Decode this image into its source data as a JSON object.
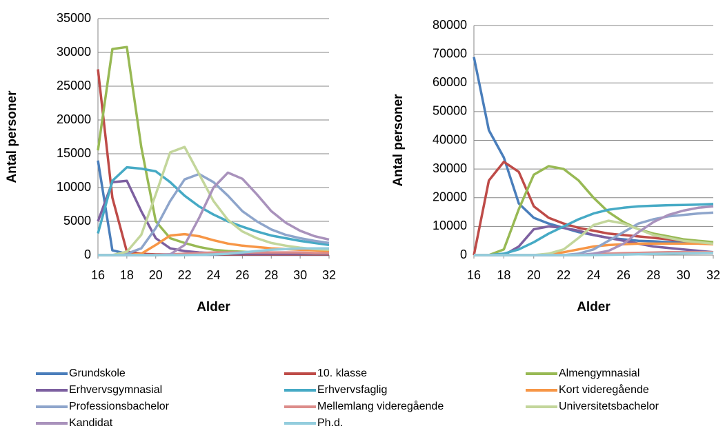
{
  "chart_data": [
    {
      "type": "line",
      "x": [
        16,
        17,
        18,
        19,
        20,
        21,
        22,
        23,
        24,
        25,
        26,
        27,
        28,
        29,
        30,
        31,
        32
      ],
      "xlabel": "Alder",
      "ylabel": "Antal personer",
      "xlim": [
        16,
        32
      ],
      "xticks": [
        16,
        18,
        20,
        22,
        24,
        26,
        28,
        30,
        32
      ],
      "ylim": [
        0,
        35000
      ],
      "yticks": [
        0,
        5000,
        10000,
        15000,
        20000,
        25000,
        30000,
        35000
      ],
      "grid": true,
      "series": [
        {
          "name": "Grundskole",
          "color": "#4a7ebb",
          "values": [
            14000,
            700,
            200,
            100,
            50,
            50,
            50,
            50,
            50,
            50,
            50,
            50,
            50,
            50,
            50,
            50,
            50
          ]
        },
        {
          "name": "10. klasse",
          "color": "#be4b48",
          "values": [
            27500,
            8500,
            500,
            200,
            100,
            100,
            100,
            100,
            100,
            100,
            100,
            100,
            100,
            100,
            100,
            100,
            100
          ]
        },
        {
          "name": "Almengymnasial",
          "color": "#98b954",
          "values": [
            15500,
            30500,
            30800,
            16000,
            5000,
            2500,
            1800,
            1200,
            800,
            600,
            500,
            400,
            300,
            300,
            200,
            200,
            200
          ]
        },
        {
          "name": "Erhvervsgymnasial",
          "color": "#7d60a0",
          "values": [
            5000,
            10800,
            11000,
            6500,
            2500,
            1000,
            600,
            400,
            300,
            200,
            200,
            200,
            200,
            200,
            200,
            200,
            200
          ]
        },
        {
          "name": "Erhvervsfaglig",
          "color": "#46aac5",
          "values": [
            3200,
            11000,
            13000,
            12800,
            12400,
            10800,
            8800,
            7200,
            6000,
            5000,
            4200,
            3500,
            2900,
            2500,
            2100,
            1800,
            1500
          ]
        },
        {
          "name": "Kort videregående",
          "color": "#f79646",
          "values": [
            0,
            0,
            0,
            200,
            1500,
            2900,
            3100,
            2800,
            2200,
            1700,
            1400,
            1200,
            1000,
            900,
            800,
            700,
            600
          ]
        },
        {
          "name": "Professionsbachelor",
          "color": "#8ea5cb",
          "values": [
            0,
            0,
            200,
            1000,
            4000,
            8000,
            11200,
            12000,
            10800,
            8800,
            6500,
            5000,
            3800,
            3000,
            2500,
            2100,
            1800
          ]
        },
        {
          "name": "Mellemlang videregående",
          "color": "#dc8c8a",
          "values": [
            0,
            0,
            0,
            0,
            0,
            100,
            200,
            300,
            400,
            400,
            400,
            400,
            400,
            400,
            400,
            300,
            300
          ]
        },
        {
          "name": "Universitetsbachelor",
          "color": "#c3d69b",
          "values": [
            0,
            0,
            500,
            3000,
            9000,
            15200,
            16000,
            12000,
            8000,
            5200,
            3500,
            2500,
            1800,
            1400,
            1100,
            900,
            800
          ]
        },
        {
          "name": "Kandidat",
          "color": "#a992bc",
          "values": [
            0,
            0,
            0,
            0,
            0,
            100,
            1500,
            5500,
            10000,
            12200,
            11300,
            9000,
            6500,
            4800,
            3600,
            2800,
            2300
          ]
        },
        {
          "name": "Ph.d.",
          "color": "#93cddd",
          "values": [
            0,
            0,
            0,
            0,
            0,
            0,
            0,
            50,
            100,
            200,
            400,
            600,
            800,
            900,
            1000,
            1000,
            1000
          ]
        }
      ]
    },
    {
      "type": "line",
      "x": [
        16,
        17,
        18,
        19,
        20,
        21,
        22,
        23,
        24,
        25,
        26,
        27,
        28,
        29,
        30,
        31,
        32
      ],
      "xlabel": "Alder",
      "ylabel": "Antal personer",
      "xlim": [
        16,
        32
      ],
      "xticks": [
        16,
        18,
        20,
        22,
        24,
        26,
        28,
        30,
        32
      ],
      "ylim": [
        0,
        80000
      ],
      "yticks": [
        0,
        10000,
        20000,
        30000,
        40000,
        50000,
        60000,
        70000,
        80000
      ],
      "grid": true,
      "series": [
        {
          "name": "Grundskole",
          "color": "#4a7ebb",
          "values": [
            69000,
            43500,
            34000,
            18000,
            13000,
            11000,
            9500,
            8000,
            7000,
            6000,
            5500,
            5000,
            4800,
            4500,
            4500,
            4500,
            4500
          ]
        },
        {
          "name": "10. klasse",
          "color": "#be4b48",
          "values": [
            0,
            26000,
            32500,
            29000,
            17000,
            13000,
            11000,
            9500,
            8500,
            7500,
            7000,
            6500,
            6000,
            5500,
            5000,
            4500,
            4000
          ]
        },
        {
          "name": "Almengymnasial",
          "color": "#98b954",
          "values": [
            0,
            0,
            2000,
            16000,
            28000,
            31000,
            30000,
            26000,
            20000,
            15000,
            11500,
            9000,
            7500,
            6500,
            5500,
            5000,
            4500
          ]
        },
        {
          "name": "Erhvervsgymnasial",
          "color": "#7d60a0",
          "values": [
            0,
            0,
            0,
            3000,
            9000,
            10000,
            9500,
            8500,
            7000,
            6000,
            5000,
            4000,
            3000,
            2500,
            2000,
            1500,
            1000
          ]
        },
        {
          "name": "Erhvervsfaglig",
          "color": "#46aac5",
          "values": [
            0,
            0,
            500,
            2000,
            4500,
            7500,
            10000,
            12500,
            14500,
            15800,
            16500,
            17000,
            17200,
            17400,
            17500,
            17600,
            17800
          ]
        },
        {
          "name": "Kort videregående",
          "color": "#f79646",
          "values": [
            0,
            0,
            0,
            0,
            0,
            200,
            1000,
            2000,
            3000,
            3500,
            3800,
            4000,
            4000,
            4000,
            4000,
            4000,
            3800
          ]
        },
        {
          "name": "Professionsbachelor",
          "color": "#8ea5cb",
          "values": [
            0,
            0,
            0,
            0,
            0,
            0,
            0,
            500,
            2000,
            5000,
            8000,
            11000,
            12500,
            13500,
            14000,
            14500,
            14800
          ]
        },
        {
          "name": "Mellemlang videregående",
          "color": "#dc8c8a",
          "values": [
            0,
            0,
            0,
            0,
            0,
            0,
            0,
            100,
            300,
            500,
            700,
            800,
            900,
            1000,
            1000,
            1000,
            1000
          ]
        },
        {
          "name": "Universitetsbachelor",
          "color": "#c3d69b",
          "values": [
            0,
            0,
            0,
            0,
            0,
            500,
            2000,
            6000,
            10500,
            12000,
            11000,
            9000,
            7000,
            6000,
            5000,
            4500,
            4000
          ]
        },
        {
          "name": "Kandidat",
          "color": "#a992bc",
          "values": [
            0,
            0,
            0,
            0,
            0,
            0,
            0,
            0,
            500,
            1500,
            4000,
            8000,
            11500,
            14000,
            15500,
            16500,
            17000
          ]
        },
        {
          "name": "Ph.d.",
          "color": "#93cddd",
          "values": [
            0,
            0,
            0,
            0,
            0,
            0,
            0,
            0,
            0,
            100,
            200,
            300,
            400,
            500,
            600,
            700,
            800
          ]
        }
      ]
    }
  ]
}
